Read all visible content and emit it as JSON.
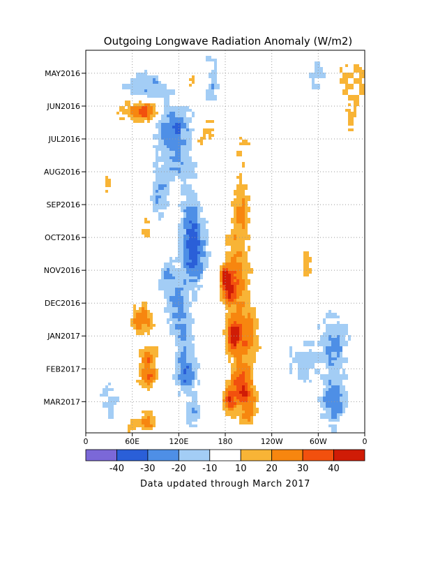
{
  "chart_data": {
    "type": "heatmap",
    "title": "Outgoing Longwave Radiation Anomaly (W/m2)",
    "subtitle": "",
    "xlabel": "",
    "ylabel": "",
    "x_ticks": [
      "0",
      "60E",
      "120E",
      "180",
      "120W",
      "60W",
      "0"
    ],
    "x_tick_degrees": [
      0,
      60,
      120,
      180,
      240,
      300,
      360
    ],
    "y_ticks": [
      "MAY2016",
      "JUN2016",
      "JUL2016",
      "AUG2016",
      "SEP2016",
      "OCT2016",
      "NOV2016",
      "DEC2016",
      "JAN2017",
      "FEB2017",
      "MAR2017"
    ],
    "y_tick_months": [
      0,
      1,
      2,
      3,
      4,
      5,
      6,
      7,
      8,
      9,
      10
    ],
    "y_range_months": [
      -0.7,
      10.95
    ],
    "x_range_degrees": [
      0,
      360
    ],
    "grid": true,
    "colorbar": {
      "placement": "bottom",
      "bounds": [
        -50,
        -40,
        -30,
        -20,
        -10,
        10,
        20,
        30,
        40,
        50
      ],
      "tick_labels": [
        "-40",
        "-30",
        "-20",
        "-10",
        "10",
        "20",
        "30",
        "40"
      ],
      "tick_values": [
        -40,
        -30,
        -20,
        -10,
        10,
        20,
        30,
        40
      ],
      "colors": [
        "#7b68d8",
        "#2a5fd8",
        "#4e8fe6",
        "#a3cdf5",
        "#ffffff",
        "#f8b436",
        "#f7860f",
        "#f2500e",
        "#d01c06"
      ]
    },
    "blobs": [
      {
        "lon": 80,
        "time": 0.5,
        "value": -25,
        "dlon": 30,
        "dtime": 0.5
      },
      {
        "lon": 160,
        "time": 0.3,
        "value": -22,
        "dlon": 10,
        "dtime": 0.8
      },
      {
        "lon": 300,
        "time": 0.1,
        "value": -15,
        "dlon": 12,
        "dtime": 0.5
      },
      {
        "lon": 155,
        "time": 0.3,
        "value": 15,
        "dlon": 7,
        "dtime": 0.5
      },
      {
        "lon": 135,
        "time": 0.2,
        "value": 13,
        "dlon": 7,
        "dtime": 0.3
      },
      {
        "lon": 345,
        "time": 0.2,
        "value": 14,
        "dlon": 22,
        "dtime": 0.6
      },
      {
        "lon": 80,
        "time": 1.1,
        "value": 34,
        "dlon": 15,
        "dtime": 0.35
      },
      {
        "lon": 60,
        "time": 1.1,
        "value": 18,
        "dlon": 20,
        "dtime": 0.4
      },
      {
        "lon": 115,
        "time": 1.5,
        "value": -25,
        "dlon": 25,
        "dtime": 0.5
      },
      {
        "lon": 160,
        "time": 1.5,
        "value": 14,
        "dlon": 12,
        "dtime": 0.4
      },
      {
        "lon": 340,
        "time": 1.3,
        "value": 14,
        "dlon": 12,
        "dtime": 0.5
      },
      {
        "lon": 150,
        "time": 2.0,
        "value": 14,
        "dlon": 10,
        "dtime": 0.3
      },
      {
        "lon": 112,
        "time": 2.1,
        "value": -18,
        "dlon": 20,
        "dtime": 0.4
      },
      {
        "lon": 205,
        "time": 2.2,
        "value": 14,
        "dlon": 12,
        "dtime": 0.3
      },
      {
        "lon": 120,
        "time": 2.8,
        "value": -18,
        "dlon": 22,
        "dtime": 0.6
      },
      {
        "lon": 95,
        "time": 3.6,
        "value": -22,
        "dlon": 12,
        "dtime": 0.8
      },
      {
        "lon": 200,
        "time": 3.4,
        "value": 14,
        "dlon": 12,
        "dtime": 0.7
      },
      {
        "lon": 30,
        "time": 3.4,
        "value": 14,
        "dlon": 6,
        "dtime": 0.4
      },
      {
        "lon": 135,
        "time": 4.5,
        "value": -20,
        "dlon": 12,
        "dtime": 1.0
      },
      {
        "lon": 200,
        "time": 4.3,
        "value": 16,
        "dlon": 12,
        "dtime": 0.6
      },
      {
        "lon": 80,
        "time": 4.7,
        "value": 14,
        "dlon": 8,
        "dtime": 0.6
      },
      {
        "lon": 140,
        "time": 5.5,
        "value": -30,
        "dlon": 17,
        "dtime": 1.0
      },
      {
        "lon": 195,
        "time": 6.1,
        "value": 24,
        "dlon": 16,
        "dtime": 1.4
      },
      {
        "lon": 180,
        "time": 6.2,
        "value": 38,
        "dlon": 6,
        "dtime": 0.3
      },
      {
        "lon": 105,
        "time": 6.2,
        "value": -18,
        "dlon": 10,
        "dtime": 0.7
      },
      {
        "lon": 285,
        "time": 5.8,
        "value": 14,
        "dlon": 7,
        "dtime": 0.5
      },
      {
        "lon": 120,
        "time": 7.2,
        "value": -22,
        "dlon": 15,
        "dtime": 0.9
      },
      {
        "lon": 185,
        "time": 6.6,
        "value": 32,
        "dlon": 8,
        "dtime": 0.4
      },
      {
        "lon": 72,
        "time": 7.5,
        "value": 28,
        "dlon": 14,
        "dtime": 0.45
      },
      {
        "lon": 205,
        "time": 8.0,
        "value": 28,
        "dlon": 18,
        "dtime": 0.9
      },
      {
        "lon": 190,
        "time": 8.0,
        "value": 38,
        "dlon": 7,
        "dtime": 0.4
      },
      {
        "lon": 130,
        "time": 8.4,
        "value": -18,
        "dlon": 15,
        "dtime": 0.8
      },
      {
        "lon": 320,
        "time": 8.2,
        "value": -22,
        "dlon": 18,
        "dtime": 0.9
      },
      {
        "lon": 280,
        "time": 8.8,
        "value": -14,
        "dlon": 20,
        "dtime": 0.8
      },
      {
        "lon": 80,
        "time": 8.6,
        "value": 26,
        "dlon": 12,
        "dtime": 0.35
      },
      {
        "lon": 80,
        "time": 9.2,
        "value": 30,
        "dlon": 12,
        "dtime": 0.35
      },
      {
        "lon": 130,
        "time": 9.3,
        "value": -24,
        "dlon": 14,
        "dtime": 0.5
      },
      {
        "lon": 200,
        "time": 9.5,
        "value": 34,
        "dlon": 14,
        "dtime": 0.6
      },
      {
        "lon": 185,
        "time": 10.0,
        "value": 34,
        "dlon": 8,
        "dtime": 0.4
      },
      {
        "lon": 210,
        "time": 10.2,
        "value": 24,
        "dlon": 12,
        "dtime": 0.6
      },
      {
        "lon": 320,
        "time": 10.0,
        "value": -26,
        "dlon": 18,
        "dtime": 0.8
      },
      {
        "lon": 140,
        "time": 10.4,
        "value": -18,
        "dlon": 12,
        "dtime": 0.4
      },
      {
        "lon": 30,
        "time": 10.0,
        "value": -14,
        "dlon": 12,
        "dtime": 0.6
      },
      {
        "lon": 80,
        "time": 10.6,
        "value": 26,
        "dlon": 12,
        "dtime": 0.3
      },
      {
        "lon": 60,
        "time": 10.7,
        "value": 16,
        "dlon": 8,
        "dtime": 0.3
      }
    ]
  },
  "footer": {
    "note": "Data updated through March 2017"
  }
}
